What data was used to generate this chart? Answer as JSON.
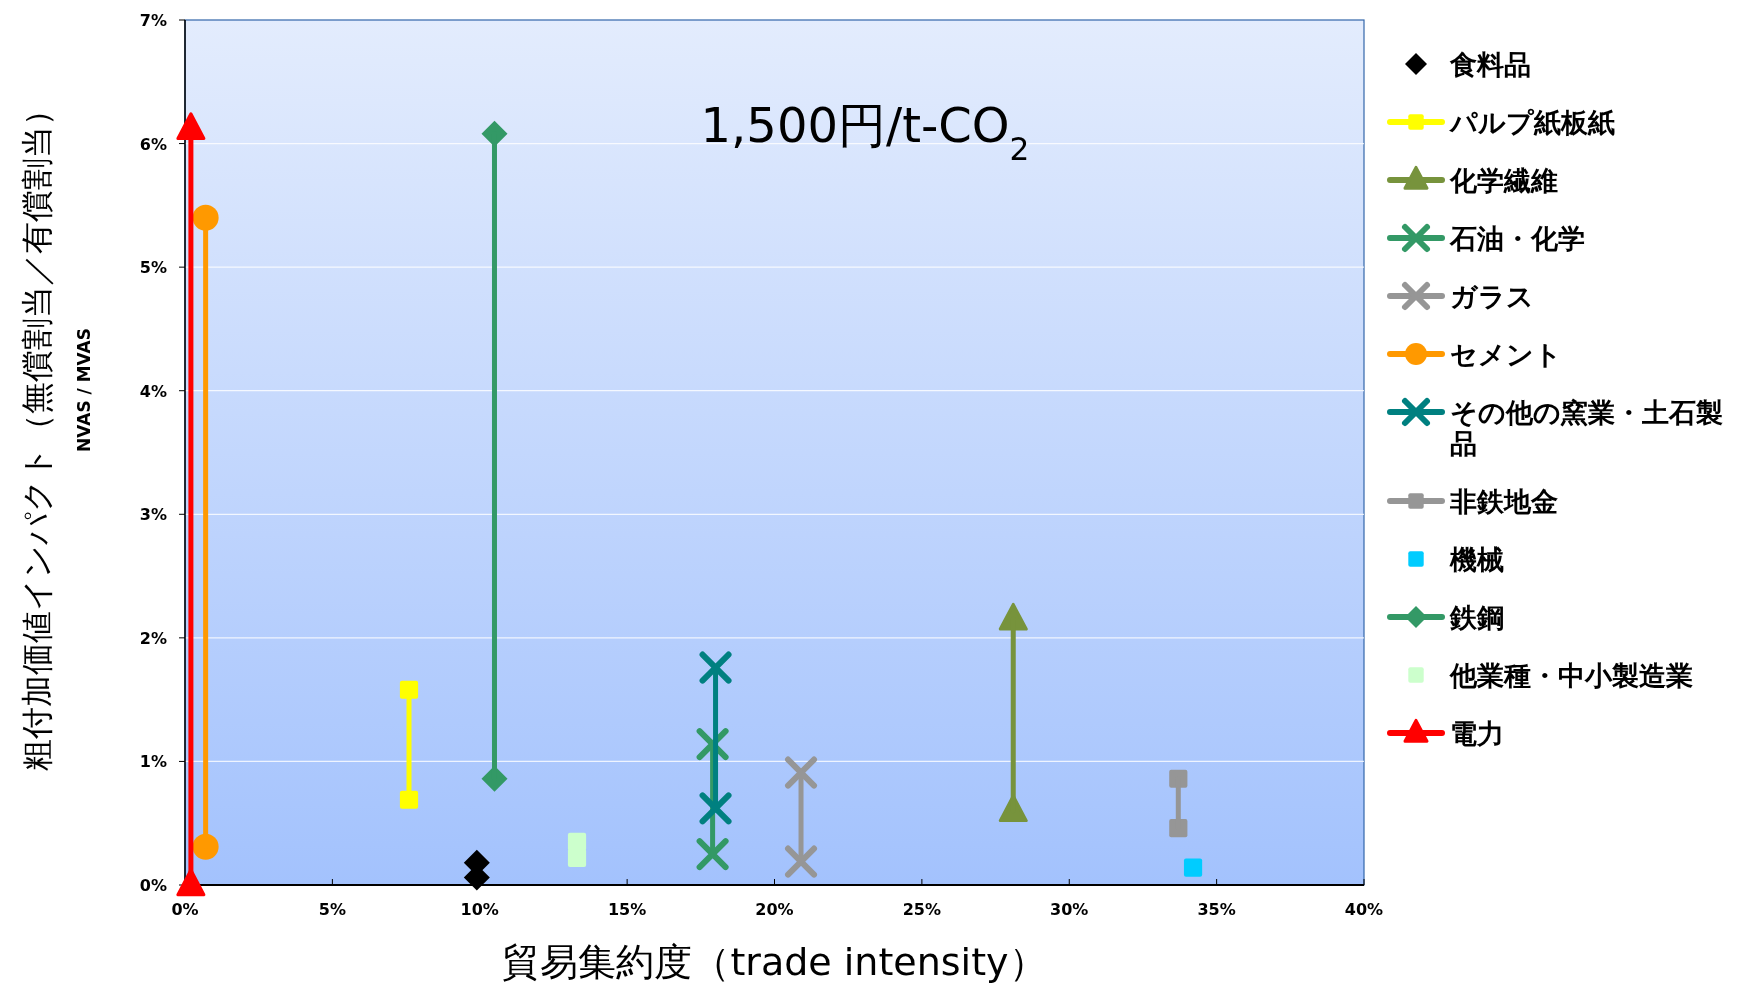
{
  "chart_data": {
    "type": "line",
    "title": "1,500円/t-CO$_{2}$",
    "xlabel": "貿易集約度（trade intensity）",
    "ylabel": "粗付加価値インパクト（無償割当／有償割当）",
    "annotations": [
      "NVAS / MVAS"
    ],
    "xlim": [
      0,
      40
    ],
    "ylim": [
      0,
      7
    ],
    "xticks": [
      {
        "value": 0,
        "label": "0%"
      },
      {
        "value": 5,
        "label": "5%"
      },
      {
        "value": 10,
        "label": "10%"
      },
      {
        "value": 15,
        "label": "15%"
      },
      {
        "value": 20,
        "label": "20%"
      },
      {
        "value": 25,
        "label": "25%"
      },
      {
        "value": 30,
        "label": "30%"
      },
      {
        "value": 35,
        "label": "35%"
      },
      {
        "value": 40,
        "label": "40%"
      }
    ],
    "yticks": [
      {
        "value": 0,
        "label": "0%"
      },
      {
        "value": 1,
        "label": "1%"
      },
      {
        "value": 2,
        "label": "2%"
      },
      {
        "value": 3,
        "label": "3%"
      },
      {
        "value": 4,
        "label": "4%"
      },
      {
        "value": 5,
        "label": "5%"
      },
      {
        "value": 6,
        "label": "6%"
      },
      {
        "value": 7,
        "label": "7%"
      }
    ],
    "grid": "y",
    "legend": "right",
    "series": [
      {
        "name": "食料品",
        "type": "scatter",
        "color": "#000000",
        "marker": "diamond",
        "x": [
          9.9,
          9.9
        ],
        "values": [
          0.18,
          0.06
        ]
      },
      {
        "name": "パルプ紙板紙",
        "color": "#ffff00",
        "marker": "square",
        "x": [
          7.6,
          7.6
        ],
        "values": [
          1.58,
          0.69
        ]
      },
      {
        "name": "化学繊維",
        "color": "#77933c",
        "marker": "triangle",
        "x": [
          28.1,
          28.1
        ],
        "values": [
          2.15,
          0.6
        ]
      },
      {
        "name": "石油・化学",
        "color": "#339966",
        "marker": "cross",
        "x": [
          17.9,
          17.9
        ],
        "values": [
          1.14,
          0.25
        ]
      },
      {
        "name": "ガラス",
        "color": "#969696",
        "marker": "cross",
        "x": [
          20.9,
          20.9
        ],
        "values": [
          0.91,
          0.19
        ]
      },
      {
        "name": "セメント",
        "color": "#ff9900",
        "marker": "circle",
        "x": [
          0.7,
          0.7
        ],
        "values": [
          5.4,
          0.31
        ]
      },
      {
        "name": "その他の窯業・土石製品",
        "color": "#008080",
        "marker": "cross",
        "x": [
          18.0,
          18.0
        ],
        "values": [
          1.76,
          0.62
        ]
      },
      {
        "name": "非鉄地金",
        "color": "#969696",
        "marker": "square",
        "x": [
          33.7,
          33.7
        ],
        "values": [
          0.86,
          0.46
        ]
      },
      {
        "name": "機械",
        "type": "scatter",
        "color": "#00ccff",
        "marker": "square",
        "x": [
          34.2
        ],
        "values": [
          0.14
        ]
      },
      {
        "name": "鉄鋼",
        "color": "#339966",
        "marker": "diamond",
        "x": [
          10.5,
          10.5
        ],
        "values": [
          6.08,
          0.86
        ]
      },
      {
        "name": "他業種・中小製造業",
        "type": "scatter",
        "color": "#ccffcc",
        "marker": "square",
        "x": [
          13.3,
          13.3
        ],
        "values": [
          0.35,
          0.22
        ]
      },
      {
        "name": "電力",
        "color": "#ff0000",
        "marker": "triangle",
        "x": [
          0.2,
          0.2
        ],
        "values": [
          6.12,
          0
        ]
      }
    ]
  }
}
